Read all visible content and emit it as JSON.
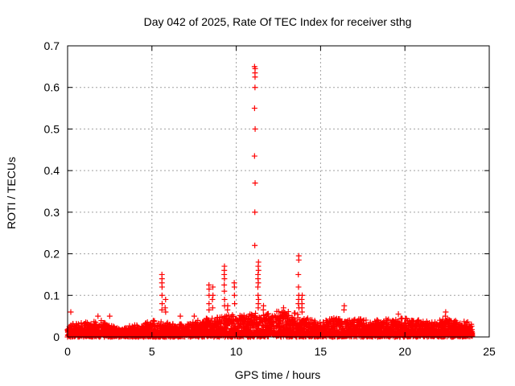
{
  "chart_data": {
    "type": "scatter",
    "title": "Day 042 of 2025, Rate Of TEC Index for receiver sthg",
    "xlabel": "GPS time / hours",
    "ylabel": "ROTI / TECUs",
    "xlim": [
      0,
      25
    ],
    "ylim": [
      0,
      0.7
    ],
    "xticks": [
      "0",
      "5",
      "10",
      "15",
      "20",
      "25"
    ],
    "yticks": [
      "0",
      "0.1",
      "0.2",
      "0.3",
      "0.4",
      "0.5",
      "0.6",
      "0.7"
    ],
    "grid": true,
    "marker": "+",
    "color": "#ff0000",
    "series": [
      {
        "x_range": [
          0,
          24.0
        ],
        "baseline_max": 0.03,
        "envelope": [
          [
            0,
            0.03
          ],
          [
            1,
            0.035
          ],
          [
            2,
            0.04
          ],
          [
            3,
            0.02
          ],
          [
            4,
            0.03
          ],
          [
            5,
            0.04
          ],
          [
            6,
            0.035
          ],
          [
            7,
            0.03
          ],
          [
            8,
            0.045
          ],
          [
            9,
            0.05
          ],
          [
            10,
            0.055
          ],
          [
            11,
            0.06
          ],
          [
            12,
            0.06
          ],
          [
            13,
            0.065
          ],
          [
            14,
            0.05
          ],
          [
            15,
            0.035
          ],
          [
            16,
            0.05
          ],
          [
            17,
            0.045
          ],
          [
            18,
            0.04
          ],
          [
            19,
            0.045
          ],
          [
            20,
            0.045
          ],
          [
            21,
            0.04
          ],
          [
            22,
            0.045
          ],
          [
            23,
            0.04
          ],
          [
            24,
            0.035
          ]
        ],
        "spikes": [
          {
            "x": 0.2,
            "y": [
              0.06
            ]
          },
          {
            "x": 1.8,
            "y": [
              0.05
            ]
          },
          {
            "x": 2.5,
            "y": [
              0.05
            ]
          },
          {
            "x": 5.6,
            "y": [
              0.15,
              0.14,
              0.13,
              0.12,
              0.1,
              0.08,
              0.065
            ]
          },
          {
            "x": 5.8,
            "y": [
              0.09,
              0.07,
              0.06
            ]
          },
          {
            "x": 6.7,
            "y": [
              0.05
            ]
          },
          {
            "x": 7.5,
            "y": [
              0.05
            ]
          },
          {
            "x": 8.4,
            "y": [
              0.125,
              0.115,
              0.1,
              0.08,
              0.065
            ]
          },
          {
            "x": 8.6,
            "y": [
              0.12,
              0.1,
              0.09,
              0.07
            ]
          },
          {
            "x": 9.3,
            "y": [
              0.17,
              0.16,
              0.15,
              0.14,
              0.125,
              0.11,
              0.09,
              0.075
            ]
          },
          {
            "x": 9.5,
            "y": [
              0.075,
              0.065
            ]
          },
          {
            "x": 9.9,
            "y": [
              0.13,
              0.12,
              0.1,
              0.08
            ]
          },
          {
            "x": 11.1,
            "y": [
              0.65,
              0.645,
              0.635,
              0.625,
              0.6,
              0.55,
              0.5,
              0.435,
              0.37,
              0.3,
              0.22
            ]
          },
          {
            "x": 11.3,
            "y": [
              0.18,
              0.17,
              0.16,
              0.15,
              0.14,
              0.13,
              0.12,
              0.1,
              0.09,
              0.08,
              0.07
            ]
          },
          {
            "x": 11.6,
            "y": [
              0.075,
              0.065
            ]
          },
          {
            "x": 12.8,
            "y": [
              0.07,
              0.06
            ]
          },
          {
            "x": 13.7,
            "y": [
              0.195,
              0.185,
              0.15,
              0.12,
              0.1,
              0.09,
              0.08,
              0.07
            ]
          },
          {
            "x": 13.9,
            "y": [
              0.1,
              0.09,
              0.08,
              0.07,
              0.06
            ]
          },
          {
            "x": 16.4,
            "y": [
              0.075,
              0.065
            ]
          },
          {
            "x": 19.6,
            "y": [
              0.055
            ]
          },
          {
            "x": 22.4,
            "y": [
              0.06,
              0.05
            ]
          }
        ]
      }
    ]
  }
}
